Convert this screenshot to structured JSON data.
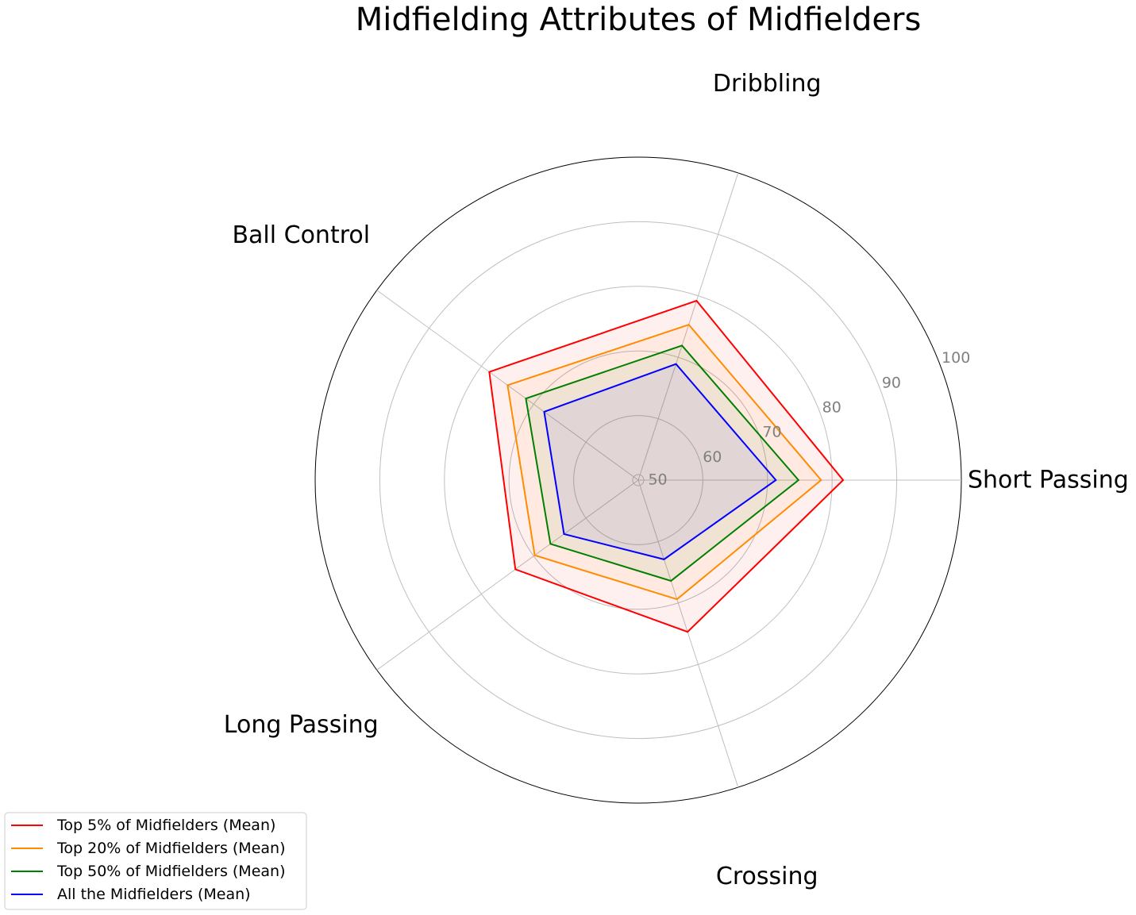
{
  "chart_data": {
    "type": "radar",
    "title": "Midfielding Attributes of Midfielders",
    "categories": [
      "Short Passing",
      "Dribbling",
      "Ball Control",
      "Long Passing",
      "Crossing"
    ],
    "rlim": [
      50,
      100
    ],
    "rticks": [
      50,
      60,
      70,
      80,
      90,
      100
    ],
    "grid": true,
    "legend_position": "bottom-left",
    "series": [
      {
        "name": "Top 5% of Midfielders (Mean)",
        "color": "#ff0000",
        "fill": "#ff0000",
        "values": [
          81.7,
          79.2,
          78.5,
          73.5,
          74.7
        ]
      },
      {
        "name": "Top 20% of Midfielders (Mean)",
        "color": "#ff8c00",
        "fill": "#ff8c00",
        "values": [
          78.3,
          75.3,
          75.0,
          69.8,
          69.4
        ]
      },
      {
        "name": "Top 50% of Midfielders (Mean)",
        "color": "#008000",
        "fill": "#008000",
        "values": [
          74.8,
          71.9,
          71.5,
          66.8,
          66.4
        ]
      },
      {
        "name": "All the Midfielders (Mean)",
        "color": "#0000ff",
        "fill": "#0000ff",
        "values": [
          71.3,
          68.9,
          68.0,
          64.2,
          62.9
        ]
      }
    ]
  }
}
